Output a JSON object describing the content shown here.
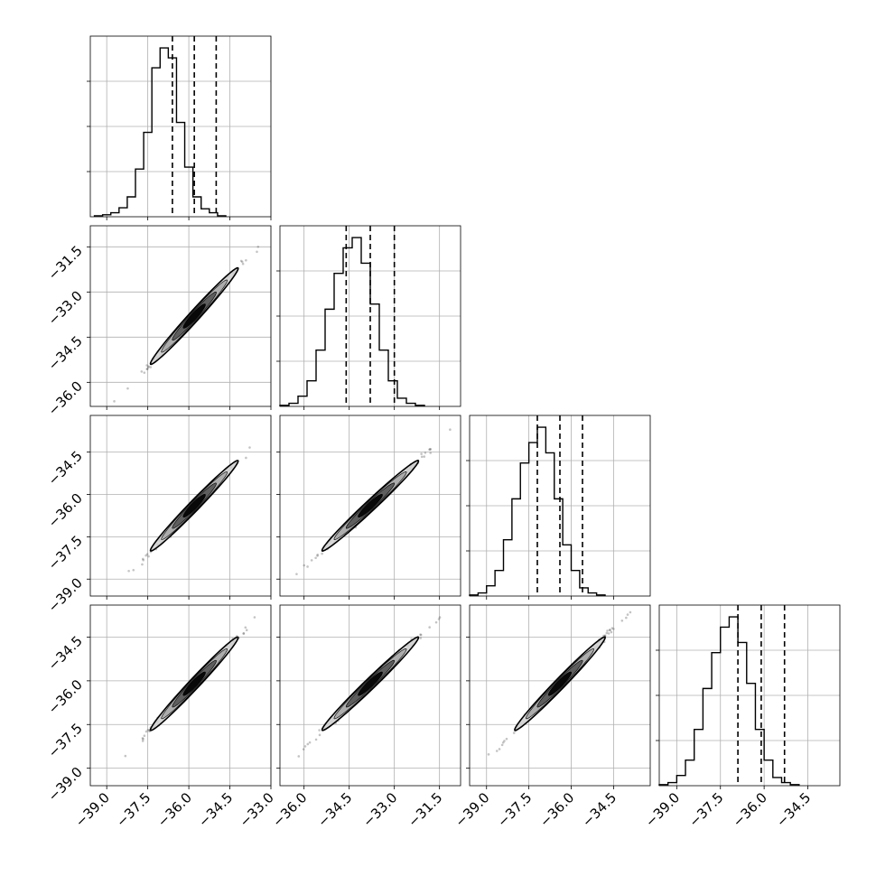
{
  "chart_data": {
    "type": "corner",
    "title": "",
    "grid": true,
    "parameters": [
      {
        "name": "",
        "range": [
          -39.6,
          -33.0
        ],
        "ticks": [
          -39.0,
          -37.5,
          -36.0,
          -34.5,
          -33.0
        ],
        "tick_labels": [
          "−39.0",
          "−37.5",
          "−36.0",
          "−34.5",
          "−33.0"
        ],
        "median": -35.8,
        "q16": -36.6,
        "q84": -35.0
      },
      {
        "name": "",
        "range": [
          -36.8,
          -30.8
        ],
        "ticks": [
          -36.0,
          -34.5,
          -33.0,
          -31.5
        ],
        "tick_labels": [
          "−36.0",
          "−34.5",
          "−33.0",
          "−31.5"
        ],
        "median": -33.8,
        "q16": -34.6,
        "q84": -33.0
      },
      {
        "name": "",
        "range": [
          -39.6,
          -33.2
        ],
        "ticks": [
          -39.0,
          -37.5,
          -36.0,
          -34.5
        ],
        "tick_labels": [
          "−39.0",
          "−37.5",
          "−36.0",
          "−34.5"
        ],
        "median": -36.4,
        "q16": -37.2,
        "q84": -35.6
      },
      {
        "name": "",
        "range": [
          -39.6,
          -33.4
        ],
        "ticks": [
          -39.0,
          -37.5,
          -36.0,
          -34.5
        ],
        "tick_labels": [
          "−39.0",
          "−37.5",
          "−36.0",
          "−34.5"
        ],
        "median": -36.1,
        "q16": -36.9,
        "q84": -35.3
      }
    ],
    "histograms": [
      {
        "parameter_index": 0,
        "edges_from": -39.45,
        "bin_width": 0.3,
        "counts": [
          1,
          2,
          4,
          9,
          20,
          48,
          85,
          150,
          170,
          160,
          95,
          50,
          20,
          8,
          4,
          1
        ]
      },
      {
        "parameter_index": 1,
        "edges_from": -36.8,
        "bin_width": 0.3,
        "counts": [
          1,
          3,
          10,
          25,
          55,
          95,
          130,
          155,
          165,
          140,
          100,
          55,
          25,
          8,
          3,
          1
        ]
      },
      {
        "parameter_index": 2,
        "edges_from": -39.6,
        "bin_width": 0.3,
        "counts": [
          1,
          3,
          10,
          25,
          55,
          95,
          130,
          150,
          165,
          140,
          95,
          50,
          25,
          8,
          3,
          1
        ]
      },
      {
        "parameter_index": 3,
        "edges_from": -39.6,
        "bin_width": 0.3,
        "counts": [
          1,
          3,
          10,
          25,
          55,
          95,
          130,
          155,
          165,
          140,
          100,
          55,
          25,
          8,
          3,
          1
        ]
      }
    ],
    "pair_plots": [
      {
        "x_index": 0,
        "y_index": 1,
        "rho": 0.996
      },
      {
        "x_index": 0,
        "y_index": 2,
        "rho": 0.996
      },
      {
        "x_index": 1,
        "y_index": 2,
        "rho": 0.996
      },
      {
        "x_index": 0,
        "y_index": 3,
        "rho": 0.996
      },
      {
        "x_index": 1,
        "y_index": 3,
        "rho": 0.996
      },
      {
        "x_index": 2,
        "y_index": 3,
        "rho": 0.996
      }
    ],
    "contour_levels": [
      0.5,
      1.0,
      1.5,
      2.0
    ],
    "colors": {
      "line": "#000000",
      "grid": "#b0b0b0",
      "contour_fill": "#d3d3d3",
      "points": "#555555"
    }
  }
}
